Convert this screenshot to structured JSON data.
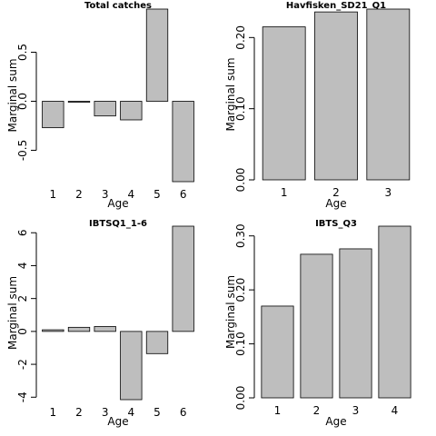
{
  "style": {
    "bar_fill": "#bebebe",
    "bar_stroke": "#000000",
    "background": "#ffffff"
  },
  "chart_data": [
    {
      "type": "bar",
      "title": "Total catches",
      "xlabel": "Age",
      "ylabel": "Marginal sum",
      "categories": [
        "1",
        "2",
        "3",
        "4",
        "5",
        "6"
      ],
      "values": [
        -0.27,
        -0.01,
        -0.15,
        -0.19,
        0.94,
        -0.82
      ],
      "ylim": [
        -0.82,
        0.94
      ],
      "yticks": [
        -0.5,
        0.0,
        0.5
      ],
      "ytick_labels": [
        "-0.5",
        "0.0",
        "0.5"
      ],
      "grid": false,
      "legend": "none"
    },
    {
      "type": "bar",
      "title": "Havfisken_SD21_Q1",
      "xlabel": "Age",
      "ylabel": "Marginal sum",
      "categories": [
        "1",
        "2",
        "3"
      ],
      "values": [
        0.215,
        0.236,
        0.24
      ],
      "ylim": [
        0,
        0.24
      ],
      "yticks": [
        0.0,
        0.1,
        0.2
      ],
      "ytick_labels": [
        "0.00",
        "0.10",
        "0.20"
      ],
      "grid": false,
      "legend": "none"
    },
    {
      "type": "bar",
      "title": "IBTSQ1_1-6",
      "xlabel": "Age",
      "ylabel": "Marginal sum",
      "categories": [
        "1",
        "2",
        "3",
        "4",
        "5",
        "6"
      ],
      "values": [
        0.1,
        0.25,
        0.3,
        -4.15,
        -1.35,
        6.4
      ],
      "ylim": [
        -4.15,
        6.4
      ],
      "yticks": [
        -4,
        -2,
        0,
        2,
        4,
        6
      ],
      "ytick_labels": [
        "-4",
        "-2",
        "0",
        "2",
        "4",
        "6"
      ],
      "grid": false,
      "legend": "none"
    },
    {
      "type": "bar",
      "title": "IBTS_Q3",
      "xlabel": "Age",
      "ylabel": "Marginal sum",
      "categories": [
        "1",
        "2",
        "3",
        "4"
      ],
      "values": [
        0.17,
        0.266,
        0.276,
        0.318
      ],
      "ylim": [
        0,
        0.318
      ],
      "yticks": [
        0.0,
        0.1,
        0.2,
        0.3
      ],
      "ytick_labels": [
        "0.00",
        "0.10",
        "0.20",
        "0.30"
      ],
      "grid": false,
      "legend": "none"
    }
  ]
}
